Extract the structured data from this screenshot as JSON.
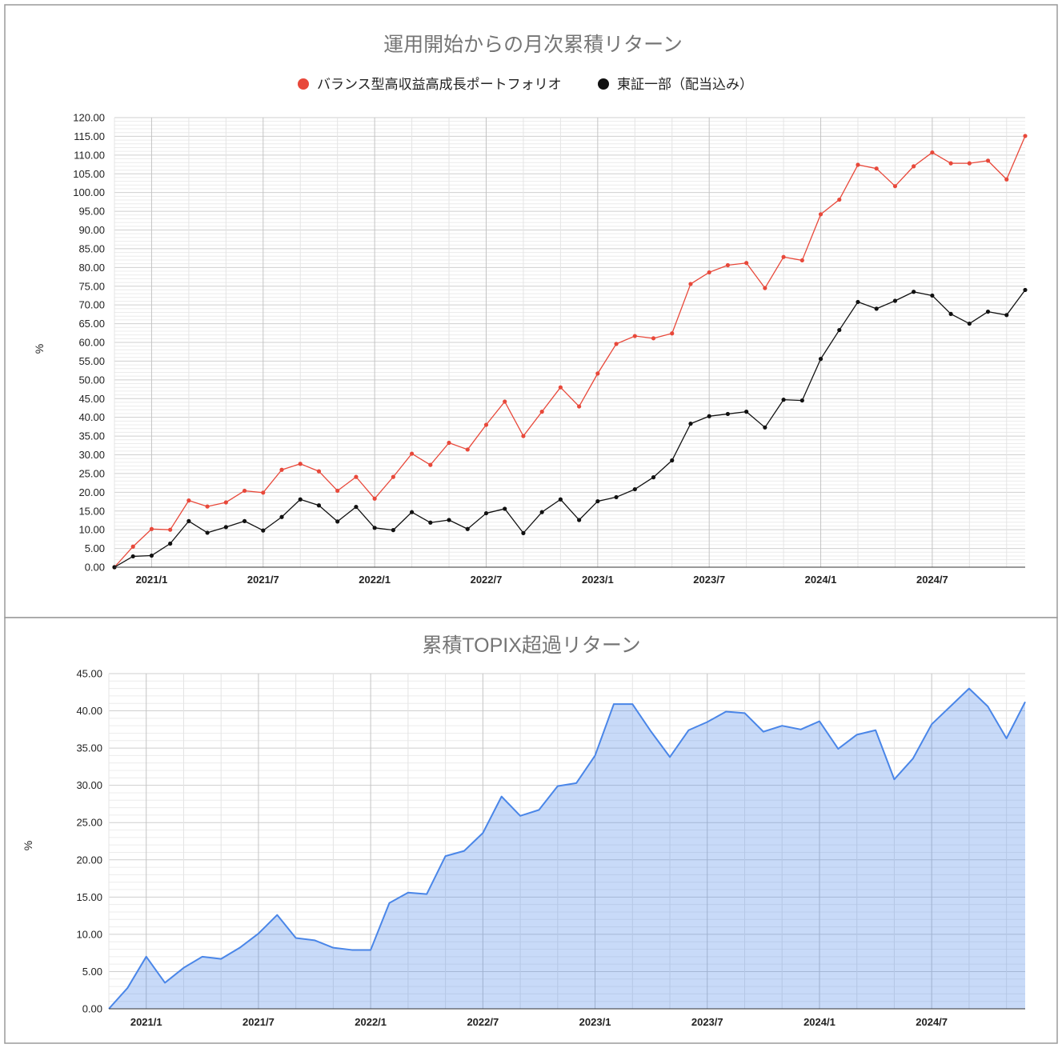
{
  "chart_data": [
    {
      "type": "line",
      "title": "運用開始からの月次累積リターン",
      "xlabel": "",
      "ylabel": "%",
      "ylim": [
        0,
        120
      ],
      "grid": true,
      "legend": "top",
      "markers": true,
      "y_ticks": [
        "0.00",
        "5.00",
        "10.00",
        "15.00",
        "20.00",
        "25.00",
        "30.00",
        "35.00",
        "40.00",
        "45.00",
        "50.00",
        "55.00",
        "60.00",
        "65.00",
        "70.00",
        "75.00",
        "80.00",
        "85.00",
        "90.00",
        "95.00",
        "100.00",
        "105.00",
        "110.00",
        "115.00",
        "120.00"
      ],
      "x_ticks": [
        "2021/1",
        "2021/7",
        "2022/1",
        "2022/7",
        "2023/1",
        "2023/7",
        "2024/1",
        "2024/7"
      ],
      "x": [
        "2020/11",
        "2020/12",
        "2021/1",
        "2021/2",
        "2021/3",
        "2021/4",
        "2021/5",
        "2021/6",
        "2021/7",
        "2021/8",
        "2021/9",
        "2021/10",
        "2021/11",
        "2021/12",
        "2022/1",
        "2022/2",
        "2022/3",
        "2022/4",
        "2022/5",
        "2022/6",
        "2022/7",
        "2022/8",
        "2022/9",
        "2022/10",
        "2022/11",
        "2022/12",
        "2023/1",
        "2023/2",
        "2023/3",
        "2023/4",
        "2023/5",
        "2023/6",
        "2023/7",
        "2023/8",
        "2023/9",
        "2023/10",
        "2023/11",
        "2023/12",
        "2024/1",
        "2024/2",
        "2024/3",
        "2024/4",
        "2024/5",
        "2024/6",
        "2024/7",
        "2024/8",
        "2024/9",
        "2024/10",
        "2024/11",
        "2024/12"
      ],
      "series": [
        {
          "name": "バランス型高収益高成長ポートフォリオ",
          "color": "#e8483a",
          "values": [
            0,
            5.5,
            10.2,
            10.0,
            17.8,
            16.2,
            17.3,
            20.4,
            19.9,
            26.0,
            27.6,
            25.6,
            20.4,
            24.1,
            18.3,
            24.1,
            30.3,
            27.3,
            33.2,
            31.4,
            38.0,
            44.2,
            35.0,
            41.5,
            48.0,
            42.9,
            51.7,
            59.6,
            61.7,
            61.1,
            62.4,
            75.6,
            78.7,
            80.6,
            81.2,
            74.5,
            82.8,
            81.9,
            94.2,
            98.1,
            107.4,
            106.4,
            101.7,
            107.0,
            110.7,
            107.8,
            107.8,
            108.5,
            103.5,
            115.1
          ]
        },
        {
          "name": "東証一部（配当込み）",
          "color": "#111111",
          "values": [
            0,
            2.9,
            3.1,
            6.3,
            12.3,
            9.2,
            10.7,
            12.3,
            9.8,
            13.4,
            18.1,
            16.5,
            12.2,
            16.1,
            10.5,
            9.9,
            14.7,
            11.9,
            12.6,
            10.2,
            14.4,
            15.6,
            9.1,
            14.7,
            18.1,
            12.6,
            17.6,
            18.7,
            20.8,
            24.0,
            28.5,
            38.3,
            40.3,
            40.9,
            41.5,
            37.3,
            44.7,
            44.5,
            55.6,
            63.3,
            70.8,
            69.0,
            71.1,
            73.5,
            72.5,
            67.6,
            65.0,
            68.2,
            67.3,
            74.0
          ]
        }
      ]
    },
    {
      "type": "area",
      "title": "累積TOPIX超過リターン",
      "xlabel": "",
      "ylabel": "%",
      "ylim": [
        0,
        45
      ],
      "grid": true,
      "legend": "none",
      "markers": false,
      "y_ticks": [
        "0.00",
        "5.00",
        "10.00",
        "15.00",
        "20.00",
        "25.00",
        "30.00",
        "35.00",
        "40.00",
        "45.00"
      ],
      "x_ticks": [
        "2021/1",
        "2021/7",
        "2022/1",
        "2022/7",
        "2023/1",
        "2023/7",
        "2024/1",
        "2024/7"
      ],
      "x": [
        "2020/11",
        "2020/12",
        "2021/1",
        "2021/2",
        "2021/3",
        "2021/4",
        "2021/5",
        "2021/6",
        "2021/7",
        "2021/8",
        "2021/9",
        "2021/10",
        "2021/11",
        "2021/12",
        "2022/1",
        "2022/2",
        "2022/3",
        "2022/4",
        "2022/5",
        "2022/6",
        "2022/7",
        "2022/8",
        "2022/9",
        "2022/10",
        "2022/11",
        "2022/12",
        "2023/1",
        "2023/2",
        "2023/3",
        "2023/4",
        "2023/5",
        "2023/6",
        "2023/7",
        "2023/8",
        "2023/9",
        "2023/10",
        "2023/11",
        "2023/12",
        "2024/1",
        "2024/2",
        "2024/3",
        "2024/4",
        "2024/5",
        "2024/6",
        "2024/7",
        "2024/8",
        "2024/9",
        "2024/10",
        "2024/11",
        "2024/12"
      ],
      "series": [
        {
          "color": "#4a86e8",
          "values": [
            0,
            2.8,
            7.0,
            3.5,
            5.5,
            7.0,
            6.7,
            8.2,
            10.1,
            12.6,
            9.5,
            9.2,
            8.2,
            7.9,
            7.9,
            14.2,
            15.6,
            15.4,
            20.5,
            21.2,
            23.6,
            28.5,
            25.9,
            26.7,
            29.9,
            30.3,
            34.0,
            40.9,
            40.9,
            37.2,
            33.8,
            37.4,
            38.5,
            39.9,
            39.7,
            37.2,
            38.0,
            37.5,
            38.6,
            34.9,
            36.8,
            37.4,
            30.8,
            33.6,
            38.2,
            40.6,
            43.0,
            40.6,
            36.3,
            41.2
          ]
        }
      ]
    }
  ]
}
